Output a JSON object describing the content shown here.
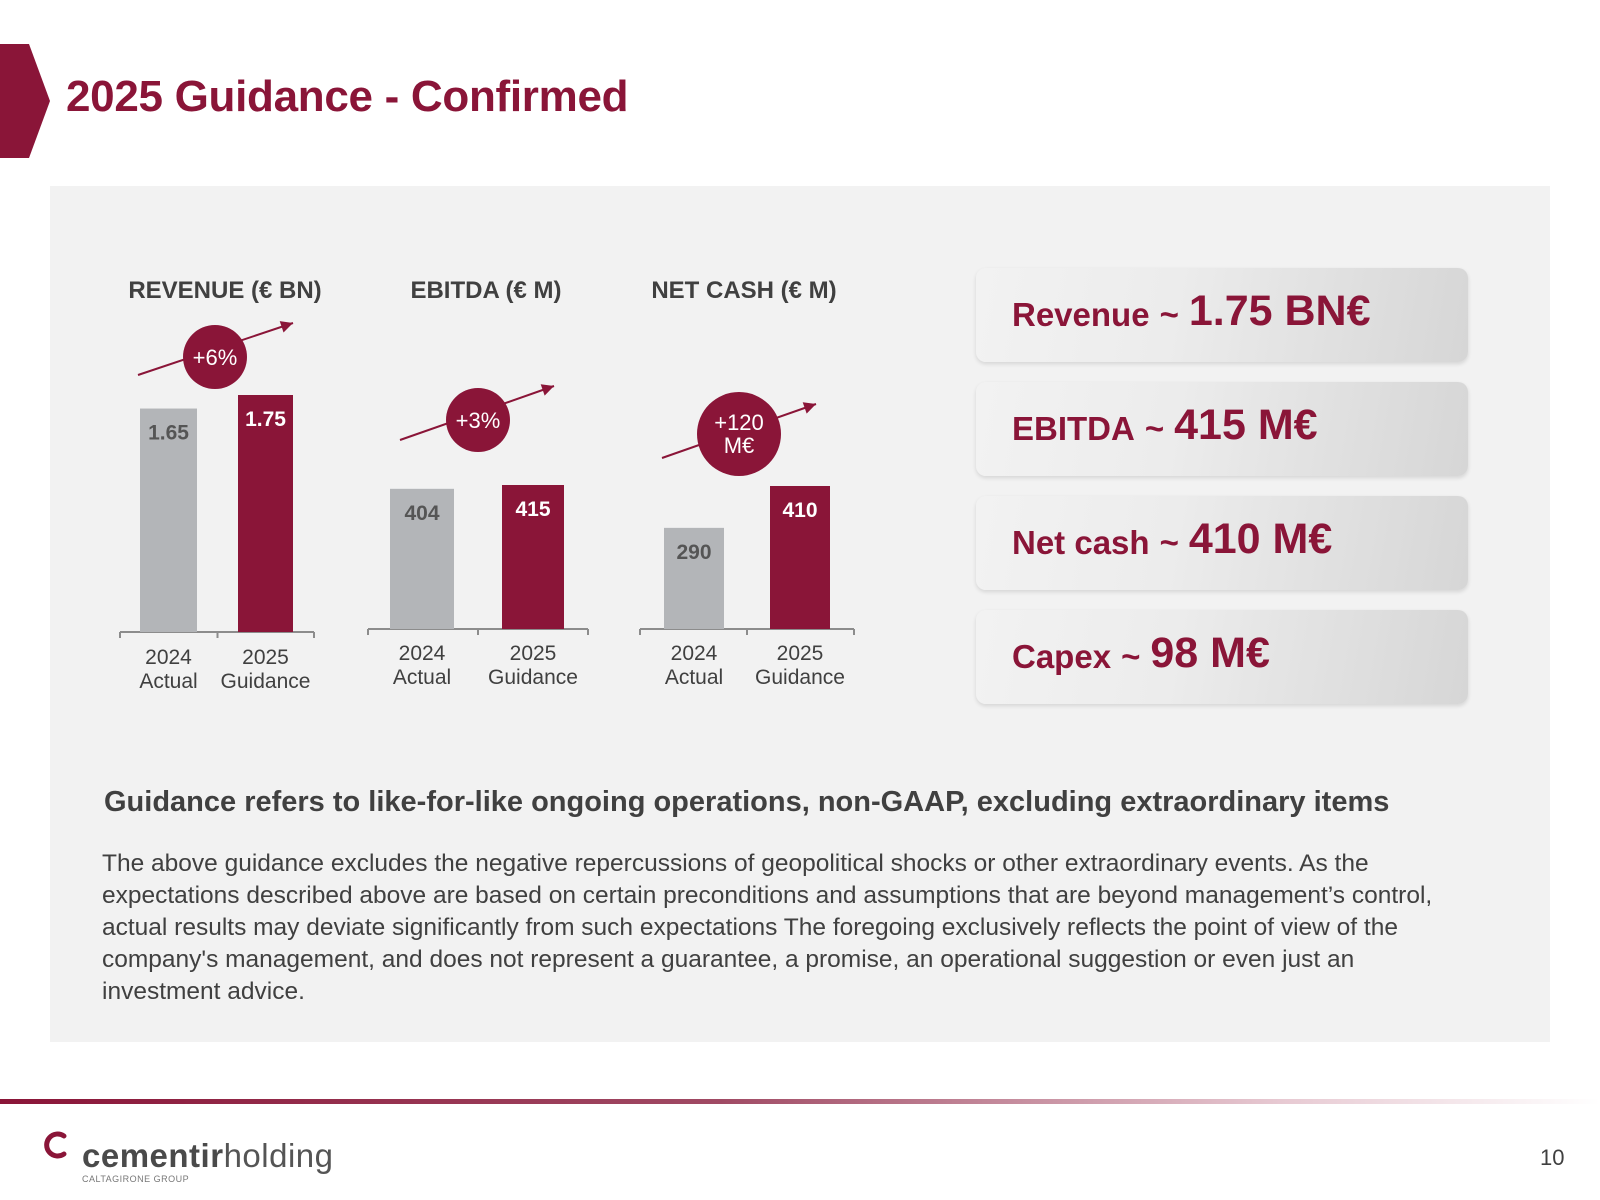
{
  "title": "2025 Guidance - Confirmed",
  "colors": {
    "accent": "#8a1538",
    "actual": "#b3b5b8",
    "panel": "#f2f2f2",
    "text": "#404040"
  },
  "chart_data": [
    {
      "type": "bar",
      "title": "REVENUE (€ BN)",
      "categories": [
        [
          "2024",
          "Actual"
        ],
        [
          "2025",
          "Guidance"
        ]
      ],
      "values": [
        1.65,
        1.75
      ],
      "labels": [
        "1.65",
        "1.75"
      ],
      "growth": [
        "+6%"
      ]
    },
    {
      "type": "bar",
      "title": "EBITDA (€ M)",
      "categories": [
        [
          "2024",
          "Actual"
        ],
        [
          "2025",
          "Guidance"
        ]
      ],
      "values": [
        404,
        415
      ],
      "labels": [
        "404",
        "415"
      ],
      "growth": [
        "+3%"
      ]
    },
    {
      "type": "bar",
      "title": "NET CASH (€ M)",
      "categories": [
        [
          "2024",
          "Actual"
        ],
        [
          "2025",
          "Guidance"
        ]
      ],
      "values": [
        290,
        410
      ],
      "labels": [
        "290",
        "410"
      ],
      "growth": [
        "+120",
        "M€"
      ]
    }
  ],
  "kpis": [
    {
      "label": "Revenue",
      "tilde": "~",
      "value": "1.75 BN€"
    },
    {
      "label": "EBITDA",
      "tilde": "~",
      "value": "415 M€"
    },
    {
      "label": "Net cash",
      "tilde": "~",
      "value": "410 M€"
    },
    {
      "label": "Capex",
      "tilde": "~",
      "value": "98 M€"
    }
  ],
  "note": "Guidance refers to like-for-like ongoing operations, non-GAAP, excluding extraordinary items",
  "disclaimer": "The above guidance excludes the negative repercussions of geopolitical shocks or other extraordinary events. As the expectations described above are based on certain preconditions and assumptions that are beyond management’s control, actual results may deviate significantly from such expectations The foregoing exclusively reflects the point of view of the company's management, and does not represent a guarantee, a promise, an operational suggestion or even just an investment advice.",
  "footer": {
    "logo_main": "cementir",
    "logo_rest": "holding",
    "logo_sub": "CALTAGIRONE GROUP",
    "page_number": "10"
  }
}
